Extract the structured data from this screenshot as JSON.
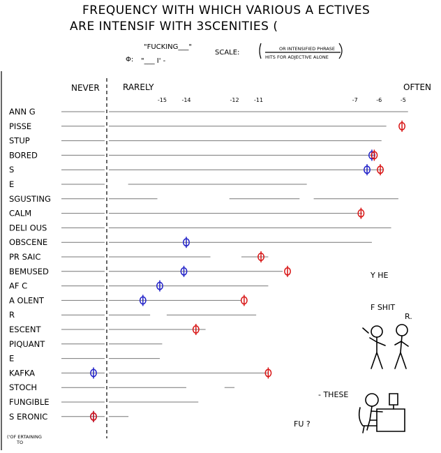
{
  "title_lines": [
    "FREQUENCY WITH WHICH VARIOUS A ECTIVES",
    "ARE INTENSIF WITH 3SCENITIES ("
  ],
  "legend": {
    "symbol_label": "Φ:",
    "phrase_top": "\"FUCKING___\"",
    "phrase_bottom": "\"___ I' -",
    "scale_label": "SCALE:",
    "scale_numerator": "OR INTENSIFIED PHRASE",
    "scale_denominator": "HITS FOR ADJECTIVE ALONE"
  },
  "headers": {
    "never": "NEVER",
    "rarely": "RARELY",
    "often": "OFTEN"
  },
  "side_text": {
    "line1": "Y HE",
    "line2": "F SHIT",
    "line3": "R.",
    "line4": "- THESE",
    "line5": "FU ?"
  },
  "footnote_lines": [
    "('OF  ERTAINING",
    "TO"
  ],
  "chart_data": {
    "type": "scatter",
    "title": "FREQUENCY WITH WHICH VARIOUS A ECTIVES ARE INTENSIF WITH 3SCENITIES (",
    "x_ticks": [
      -15,
      -14,
      -12,
      -11,
      -7,
      -6,
      -5
    ],
    "x_tick_labels": [
      "-15",
      "-14",
      "-12",
      "-11",
      "-7",
      "-6",
      "-5"
    ],
    "xlim": [
      -17.3,
      -4.3
    ],
    "never_threshold": -17.3,
    "categories": [
      "ANN G",
      "PISSE",
      "STUP",
      "BORED",
      "S",
      "E",
      "SGUSTING",
      "CALM",
      "DELI OUS",
      "OBSCENE",
      "PR SAIC",
      "BEMUSED",
      "AF C",
      "A OLENT",
      "R",
      "ESCENT",
      "PIQUANT",
      "E",
      "KAFKA",
      "STOCH",
      "FUNGIBLE",
      "S ERONIC"
    ],
    "series": [
      {
        "symbol": "Φ",
        "color": "#2020c8",
        "values": [
          null,
          null,
          null,
          -6.3,
          -6.5,
          null,
          null,
          null,
          null,
          -14.0,
          null,
          -14.1,
          -15.1,
          -15.8,
          null,
          null,
          null,
          null,
          -17.6,
          null,
          null,
          -17.6
        ]
      },
      {
        "symbol": "Φ",
        "color": "#d81414",
        "values": [
          null,
          -5.05,
          null,
          -6.2,
          -5.95,
          null,
          null,
          -6.75,
          null,
          null,
          -10.9,
          -9.8,
          null,
          -11.6,
          null,
          -13.6,
          null,
          null,
          -10.6,
          null,
          null,
          -17.5
        ]
      }
    ],
    "grid_extents": [
      [
        [
          -17.3,
          -4.8
        ]
      ],
      [
        [
          -17.3,
          -5.7
        ]
      ],
      [
        [
          -17.3,
          -5.9
        ]
      ],
      [
        [
          -17.3,
          -6.2
        ]
      ],
      [
        [
          -17.3,
          -5.8
        ]
      ],
      [
        [
          -16.5,
          -9.0
        ]
      ],
      [
        [
          -17.3,
          -15.2
        ],
        [
          -12.3,
          -9.3
        ],
        [
          -8.8,
          -5.2
        ]
      ],
      [
        [
          -17.3,
          -6.7
        ]
      ],
      [
        [
          -17.3,
          -5.5
        ]
      ],
      [
        [
          -17.3,
          -6.3
        ]
      ],
      [
        [
          -17.3,
          -13.0
        ],
        [
          -11.8,
          -10.6
        ]
      ],
      [
        [
          -17.3,
          -10.0
        ]
      ],
      [
        [
          -17.3,
          -10.6
        ]
      ],
      [
        [
          -17.3,
          -11.7
        ]
      ],
      [
        [
          -17.3,
          -15.5
        ],
        [
          -14.9,
          -11.1
        ]
      ],
      [
        [
          -17.3,
          -13.2
        ]
      ],
      [
        [
          -17.3,
          -15.0
        ]
      ],
      [
        [
          -17.3,
          -15.1
        ]
      ],
      [
        [
          -17.3,
          -10.6
        ]
      ],
      [
        [
          -17.3,
          -14.0
        ],
        [
          -12.5,
          -12.0
        ]
      ],
      [
        [
          -17.3,
          -13.5
        ]
      ],
      [
        [
          -17.3,
          -16.4
        ]
      ]
    ]
  }
}
